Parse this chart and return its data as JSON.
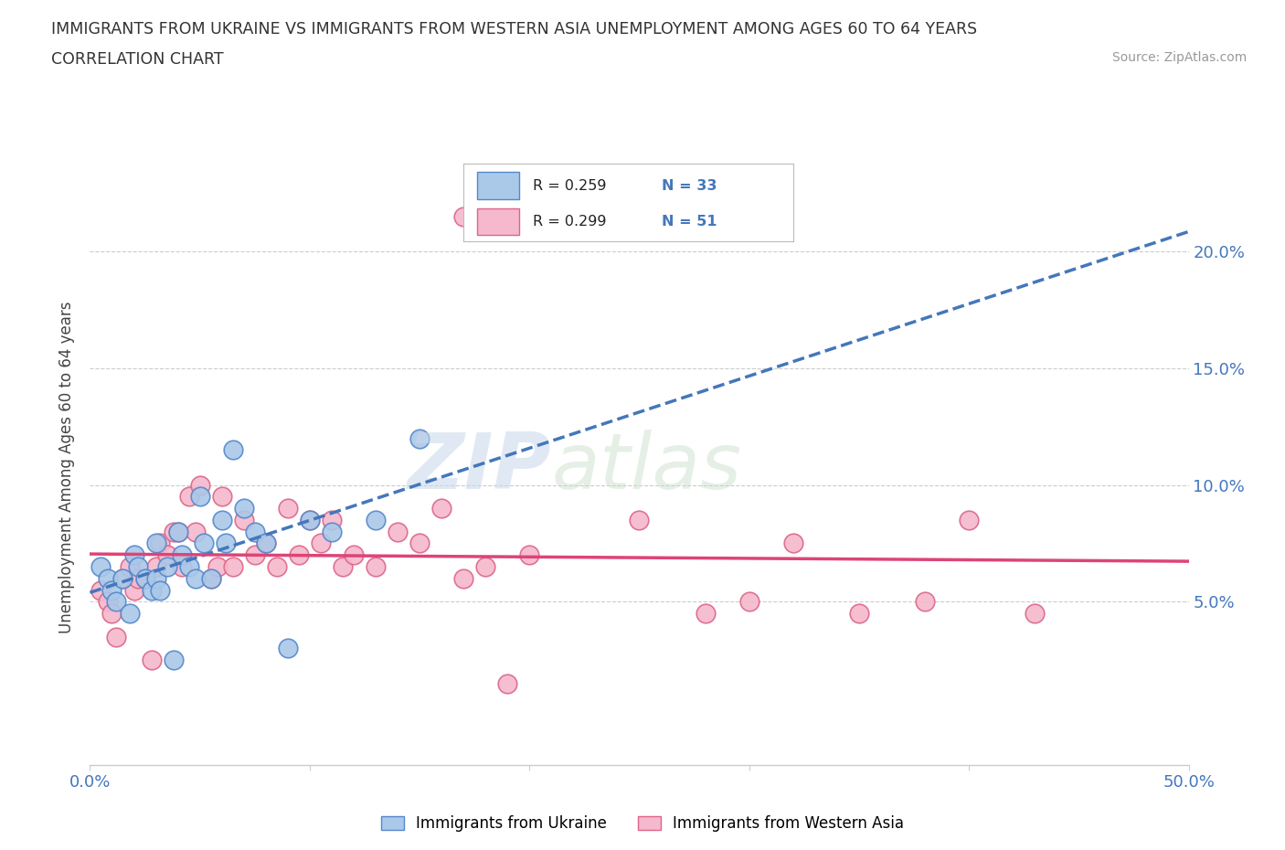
{
  "title_line1": "IMMIGRANTS FROM UKRAINE VS IMMIGRANTS FROM WESTERN ASIA UNEMPLOYMENT AMONG AGES 60 TO 64 YEARS",
  "title_line2": "CORRELATION CHART",
  "source": "Source: ZipAtlas.com",
  "ylabel": "Unemployment Among Ages 60 to 64 years",
  "ytick_labels": [
    "5.0%",
    "10.0%",
    "15.0%",
    "20.0%"
  ],
  "ytick_values": [
    0.05,
    0.1,
    0.15,
    0.2
  ],
  "xlim": [
    0.0,
    0.5
  ],
  "ylim": [
    -0.02,
    0.235
  ],
  "ukraine_color": "#aac8e8",
  "ukraine_edge_color": "#5588cc",
  "western_asia_color": "#f5b8cc",
  "western_asia_edge_color": "#dd6688",
  "ukraine_line_color": "#4477bb",
  "western_asia_line_color": "#dd4477",
  "ukraine_label": "Immigrants from Ukraine",
  "western_asia_label": "Immigrants from Western Asia",
  "R_ukraine": 0.259,
  "N_ukraine": 33,
  "R_western_asia": 0.299,
  "N_western_asia": 51,
  "watermark_zip": "ZIP",
  "watermark_atlas": "atlas",
  "ukraine_x": [
    0.005,
    0.008,
    0.01,
    0.012,
    0.015,
    0.018,
    0.02,
    0.022,
    0.025,
    0.028,
    0.03,
    0.03,
    0.032,
    0.035,
    0.038,
    0.04,
    0.042,
    0.045,
    0.048,
    0.05,
    0.052,
    0.055,
    0.06,
    0.062,
    0.065,
    0.07,
    0.075,
    0.08,
    0.09,
    0.1,
    0.11,
    0.13,
    0.15
  ],
  "ukraine_y": [
    0.065,
    0.06,
    0.055,
    0.05,
    0.06,
    0.045,
    0.07,
    0.065,
    0.06,
    0.055,
    0.075,
    0.06,
    0.055,
    0.065,
    0.025,
    0.08,
    0.07,
    0.065,
    0.06,
    0.095,
    0.075,
    0.06,
    0.085,
    0.075,
    0.115,
    0.09,
    0.08,
    0.075,
    0.03,
    0.085,
    0.08,
    0.085,
    0.12
  ],
  "western_asia_x": [
    0.005,
    0.008,
    0.01,
    0.012,
    0.015,
    0.018,
    0.02,
    0.022,
    0.025,
    0.028,
    0.03,
    0.032,
    0.035,
    0.038,
    0.04,
    0.042,
    0.045,
    0.048,
    0.05,
    0.055,
    0.058,
    0.06,
    0.065,
    0.07,
    0.075,
    0.08,
    0.085,
    0.09,
    0.095,
    0.1,
    0.105,
    0.11,
    0.115,
    0.12,
    0.13,
    0.14,
    0.15,
    0.16,
    0.17,
    0.18,
    0.19,
    0.2,
    0.25,
    0.28,
    0.3,
    0.32,
    0.35,
    0.38,
    0.4,
    0.43,
    0.17
  ],
  "western_asia_y": [
    0.055,
    0.05,
    0.045,
    0.035,
    0.06,
    0.065,
    0.055,
    0.06,
    0.06,
    0.025,
    0.065,
    0.075,
    0.07,
    0.08,
    0.08,
    0.065,
    0.095,
    0.08,
    0.1,
    0.06,
    0.065,
    0.095,
    0.065,
    0.085,
    0.07,
    0.075,
    0.065,
    0.09,
    0.07,
    0.085,
    0.075,
    0.085,
    0.065,
    0.07,
    0.065,
    0.08,
    0.075,
    0.09,
    0.06,
    0.065,
    0.015,
    0.07,
    0.085,
    0.045,
    0.05,
    0.075,
    0.045,
    0.05,
    0.085,
    0.045,
    0.215
  ],
  "grid_color": "#cccccc",
  "spine_color": "#cccccc",
  "tick_color": "#4477bb",
  "bg_color": "#ffffff"
}
